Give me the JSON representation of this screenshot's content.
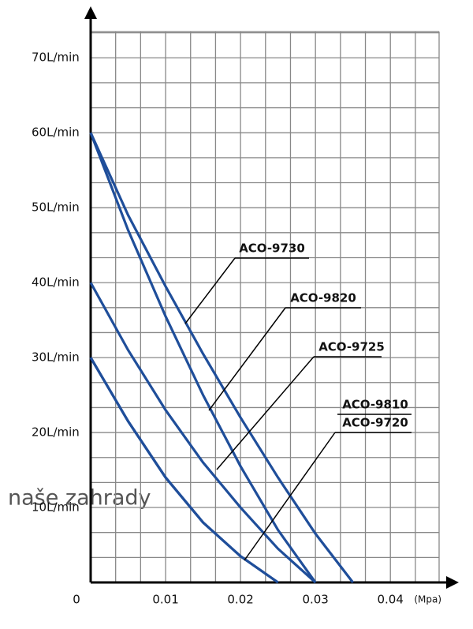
{
  "chart_data": {
    "type": "line",
    "x": [
      0,
      0.005,
      0.01,
      0.015,
      0.02,
      0.025,
      0.03,
      0.035
    ],
    "series": [
      {
        "name": "ACO-9730",
        "color": "#1f4e9a",
        "values": [
          60,
          49,
          39.5,
          30.5,
          22,
          14,
          6.5,
          0
        ]
      },
      {
        "name": "ACO-9820",
        "color": "#1f4e9a",
        "values": [
          60,
          47,
          35.5,
          25,
          15.5,
          7,
          0,
          null
        ]
      },
      {
        "name": "ACO-9725",
        "color": "#1f4e9a",
        "values": [
          40,
          31,
          23,
          16,
          10,
          4.5,
          0,
          null
        ]
      },
      {
        "name": "ACO-9810",
        "color": "#1f4e9a",
        "values": [
          30,
          21.5,
          14,
          8,
          3.5,
          0,
          null,
          null
        ]
      },
      {
        "name": "ACO-9720",
        "color": "#1f4e9a",
        "values": [
          30,
          21.5,
          14,
          8,
          3.5,
          0,
          null,
          null
        ]
      }
    ],
    "xlabel": "(Mpa)",
    "xlim": [
      0,
      0.0465
    ],
    "ylim": [
      0,
      73.5
    ],
    "xticks": [
      0,
      0.01,
      0.02,
      0.03,
      0.04
    ],
    "yticks": [
      {
        "value": 10,
        "label": "10L/min"
      },
      {
        "value": 20,
        "label": "20L/min"
      },
      {
        "value": 30,
        "label": "30L/min"
      },
      {
        "value": 40,
        "label": "40L/min"
      },
      {
        "value": 50,
        "label": "50L/min"
      },
      {
        "value": 60,
        "label": "60L/min"
      },
      {
        "value": 70,
        "label": "70L/min"
      }
    ],
    "grid": true,
    "watermark": "naše zahrady"
  }
}
